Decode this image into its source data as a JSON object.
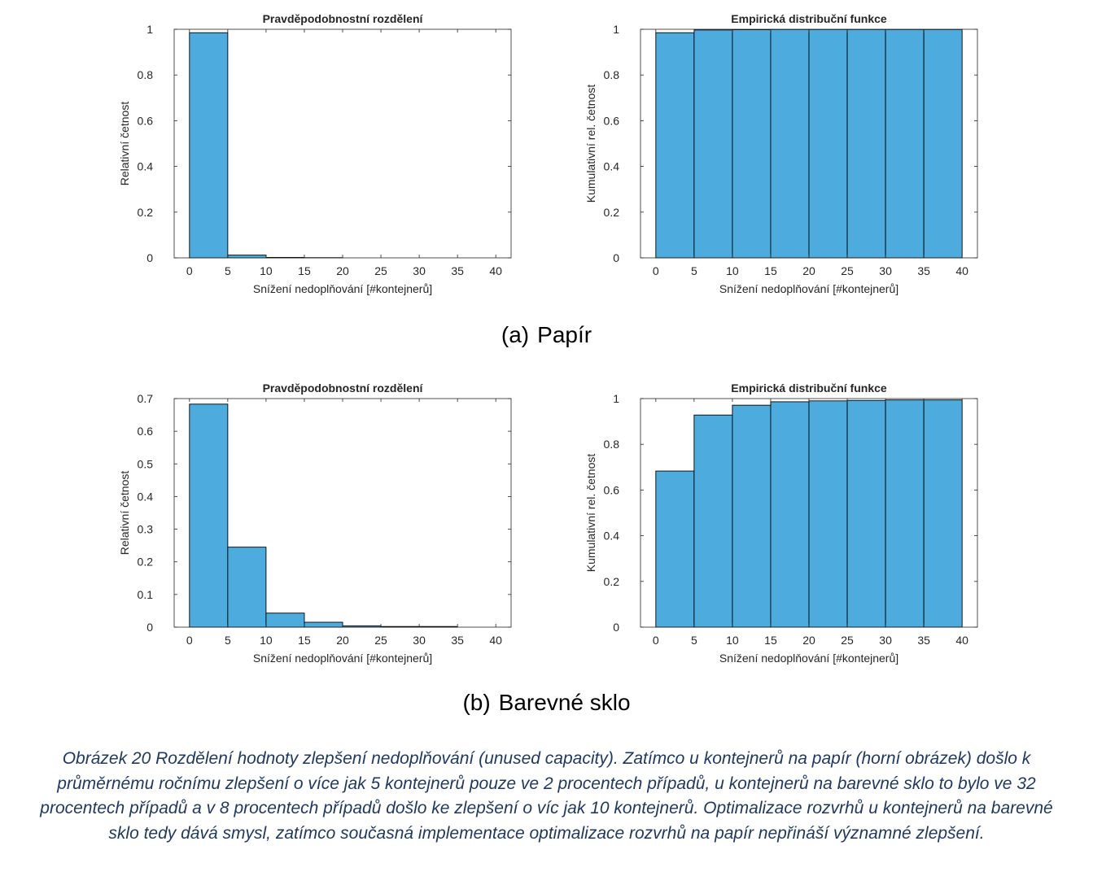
{
  "chart_data": [
    {
      "id": "papir-pmf",
      "type": "bar",
      "title": "Pravděpodobnostní rozdělení",
      "xlabel": "Snížení nedoplňování [#kontejnerů]",
      "ylabel": "Relativní četnost",
      "xlim": [
        -2,
        42
      ],
      "ylim": [
        0,
        1
      ],
      "xticks": [
        0,
        5,
        10,
        15,
        20,
        25,
        30,
        35,
        40
      ],
      "yticks": [
        "0",
        "0.2",
        "0.4",
        "0.6",
        "0.8",
        "1"
      ],
      "bin_edges": [
        0,
        5,
        10,
        15,
        20,
        25,
        30,
        35,
        40
      ],
      "values": [
        0.985,
        0.012,
        0.002,
        0.001,
        0,
        0,
        0,
        0
      ],
      "color": "#4DACDD"
    },
    {
      "id": "papir-cdf",
      "type": "bar",
      "title": "Empirická distribuční funkce",
      "xlabel": "Snížení nedoplňování [#kontejnerů]",
      "ylabel": "Kumulativní rel. četnost",
      "xlim": [
        -2,
        42
      ],
      "ylim": [
        0,
        1
      ],
      "xticks": [
        0,
        5,
        10,
        15,
        20,
        25,
        30,
        35,
        40
      ],
      "yticks": [
        "0",
        "0.2",
        "0.4",
        "0.6",
        "0.8",
        "1"
      ],
      "bin_edges": [
        0,
        5,
        10,
        15,
        20,
        25,
        30,
        35,
        40
      ],
      "values": [
        0.985,
        0.997,
        0.998,
        0.999,
        0.999,
        0.999,
        0.999,
        0.999
      ],
      "color": "#4DACDD"
    },
    {
      "id": "sklo-pmf",
      "type": "bar",
      "title": "Pravděpodobnostní rozdělení",
      "xlabel": "Snížení nedoplňování [#kontejnerů]",
      "ylabel": "Relativní četnost",
      "xlim": [
        -2,
        42
      ],
      "ylim": [
        0,
        0.7
      ],
      "xticks": [
        0,
        5,
        10,
        15,
        20,
        25,
        30,
        35,
        40
      ],
      "yticks": [
        "0",
        "0.1",
        "0.2",
        "0.3",
        "0.4",
        "0.5",
        "0.6",
        "0.7"
      ],
      "bin_edges": [
        0,
        5,
        10,
        15,
        20,
        25,
        30,
        35,
        40
      ],
      "values": [
        0.683,
        0.245,
        0.043,
        0.015,
        0.004,
        0.002,
        0.002,
        0
      ],
      "color": "#4DACDD"
    },
    {
      "id": "sklo-cdf",
      "type": "bar",
      "title": "Empirická distribuční funkce",
      "xlabel": "Snížení nedoplňování [#kontejnerů]",
      "ylabel": "Kumulativní rel. četnost",
      "xlim": [
        -2,
        42
      ],
      "ylim": [
        0,
        1
      ],
      "xticks": [
        0,
        5,
        10,
        15,
        20,
        25,
        30,
        35,
        40
      ],
      "yticks": [
        "0",
        "0.2",
        "0.4",
        "0.6",
        "0.8",
        "1"
      ],
      "bin_edges": [
        0,
        5,
        10,
        15,
        20,
        25,
        30,
        35,
        40
      ],
      "values": [
        0.683,
        0.928,
        0.971,
        0.986,
        0.99,
        0.992,
        0.994,
        0.994
      ],
      "color": "#4DACDD"
    }
  ],
  "subcaptions": {
    "a_label": "(a)",
    "a_text": "Papír",
    "b_label": "(b)",
    "b_text": "Barevné sklo"
  },
  "caption": "Obrázek 20 Rozdělení hodnoty zlepšení nedoplňování (unused capacity). Zatímco u kontejnerů na papír (horní obrázek) došlo k průměrnému ročnímu  zlepšení o více jak 5 kontejnerů pouze ve 2 procentech případů, u kontejnerů na barevné sklo to bylo ve 32 procentech případů a v 8 procentech případů došlo ke zlepšení o víc jak 10 kontejnerů. Optimalizace rozvrhů u kontejnerů na barevné sklo tedy dává smysl, zatímco současná implementace optimalizace rozvrhů na papír nepřináší významné zlepšení."
}
